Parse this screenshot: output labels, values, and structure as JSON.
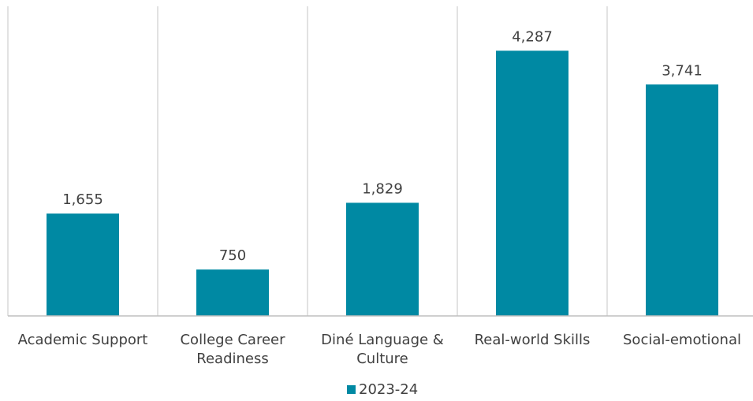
{
  "chart_data": {
    "type": "bar",
    "categories": [
      [
        "Academic Support"
      ],
      [
        "College Career",
        "Readiness"
      ],
      [
        "Diné Language &",
        "Culture"
      ],
      [
        "Real-world Skills"
      ],
      [
        "Social-emotional"
      ]
    ],
    "series": [
      {
        "name": "2023-24",
        "values": [
          1655,
          750,
          1829,
          4287,
          3741
        ],
        "labels": [
          "1,655",
          "750",
          "1,829",
          "4,287",
          "3,741"
        ],
        "color": "#0089a3"
      }
    ],
    "ylim": [
      0,
      4500
    ],
    "grid": "vertical-category-separators",
    "legend": "bottom-center",
    "colors": {
      "bar": "#0089a3",
      "gridline": "#d9d9d9",
      "axis": "#bfbfbf",
      "text": "#404040"
    }
  }
}
